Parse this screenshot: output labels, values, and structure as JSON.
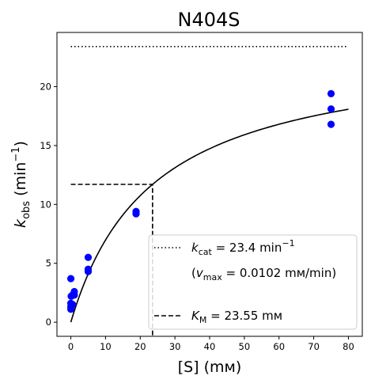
{
  "chart_data": {
    "type": "scatter",
    "title": "N404S",
    "xlabel": "[S] (mм)",
    "ylabel": {
      "main": "k",
      "sub": "obs",
      "unit_pre": " (min",
      "unit_sup": "−1",
      "unit_post": ")"
    },
    "xlim": [
      -4,
      84
    ],
    "ylim": [
      -1.2,
      24.6
    ],
    "xticks": [
      0,
      10,
      20,
      30,
      40,
      50,
      60,
      70,
      80
    ],
    "yticks": [
      0,
      5,
      10,
      15,
      20
    ],
    "grid": false,
    "legend_position": "lower-right",
    "colors": {
      "points": "#0000ff",
      "lines": "#000000"
    },
    "series": [
      {
        "kind": "points",
        "x": [
          0,
          0,
          0,
          0,
          0.1,
          0.5,
          0.5,
          1,
          1,
          5,
          5,
          5,
          18.8,
          18.8,
          75,
          75,
          75
        ],
        "y": [
          1.1,
          1.3,
          1.6,
          3.7,
          2.2,
          1.5,
          2.3,
          2.3,
          2.6,
          4.3,
          4.5,
          5.5,
          9.2,
          9.4,
          16.8,
          18.1,
          19.4
        ]
      },
      {
        "kind": "fit",
        "model": "michaelis-menten",
        "kcat": 23.4,
        "km": 23.55,
        "x_range": [
          0,
          80
        ]
      },
      {
        "kind": "kcat-line",
        "y": 23.4,
        "x_range": [
          0,
          80
        ]
      },
      {
        "kind": "km-guide",
        "x": 23.55,
        "y": 11.7
      }
    ],
    "legend": [
      {
        "style": "dotted",
        "sym": "k",
        "sub": "cat",
        "text": " = 23.4 min",
        "sup": "−1"
      },
      {
        "style": "none",
        "line2_pre": "(",
        "sym": "v",
        "sub": "max",
        "text": " = 0.0102 mм/min)"
      },
      {
        "style": "dashed",
        "sym": "K",
        "sub": "M",
        "text": " = 23.55 mм"
      }
    ]
  }
}
